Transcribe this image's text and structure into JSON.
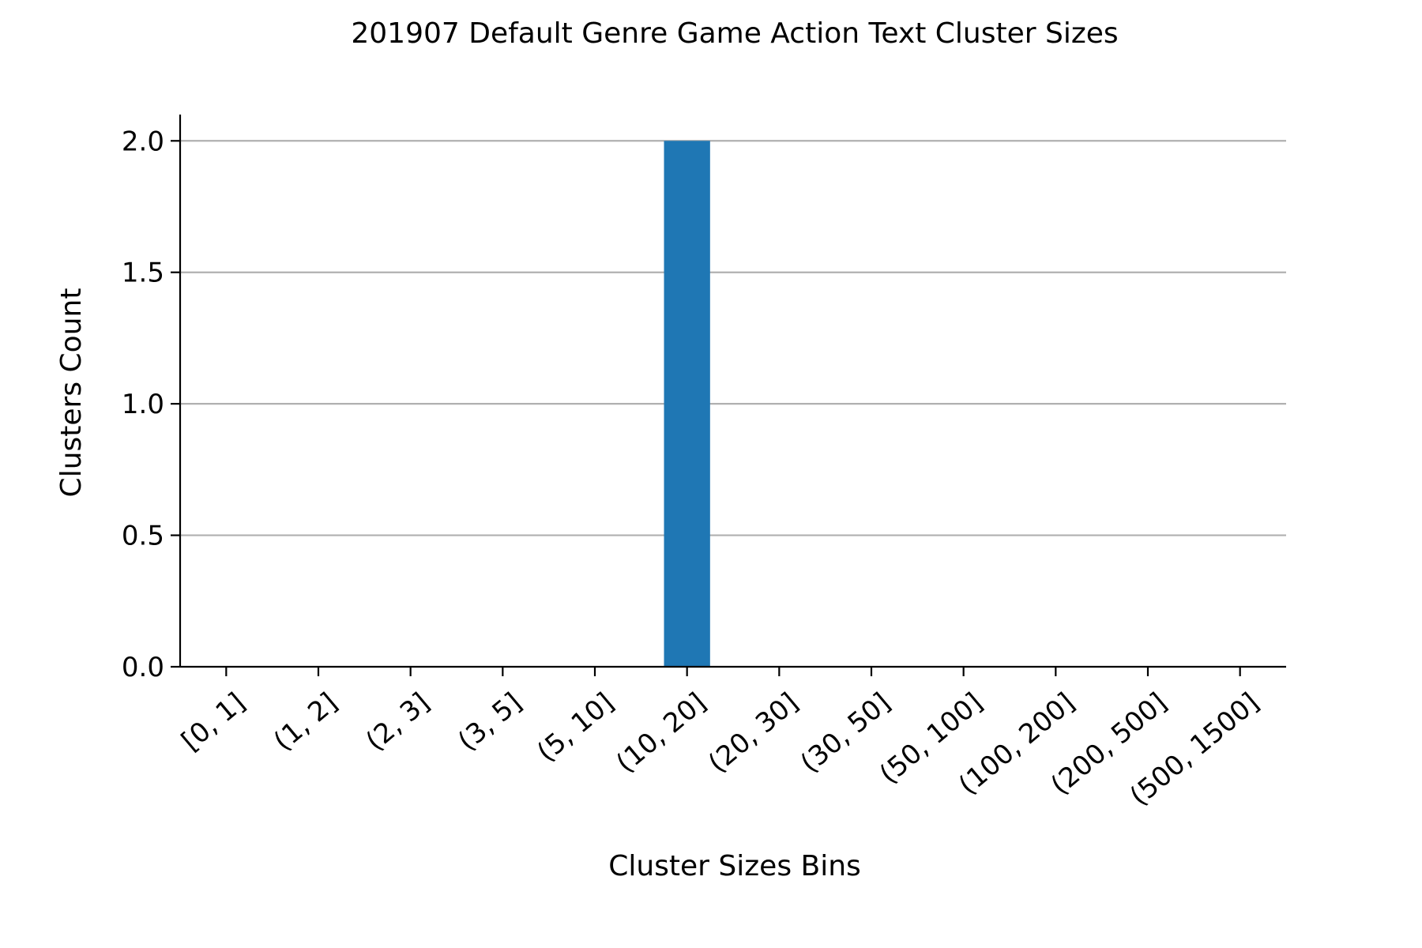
{
  "chart_data": {
    "type": "bar",
    "title": "201907 Default Genre Game Action Text Cluster Sizes",
    "xlabel": "Cluster Sizes Bins",
    "ylabel": "Clusters Count",
    "categories": [
      "[0, 1]",
      "(1, 2]",
      "(2, 3]",
      "(3, 5]",
      "(5, 10]",
      "(10, 20]",
      "(20, 30]",
      "(30, 50]",
      "(50, 100]",
      "(100, 200]",
      "(200, 500]",
      "(500, 1500]"
    ],
    "values": [
      0,
      0,
      0,
      0,
      0,
      2,
      0,
      0,
      0,
      0,
      0,
      0
    ],
    "ylim": [
      0,
      2.1
    ],
    "yticks": [
      0.0,
      0.5,
      1.0,
      1.5,
      2.0
    ],
    "ytick_labels": [
      "0.0",
      "0.5",
      "1.0",
      "1.5",
      "2.0"
    ],
    "grid": "horizontal",
    "bar_color": "#1f77b4"
  }
}
